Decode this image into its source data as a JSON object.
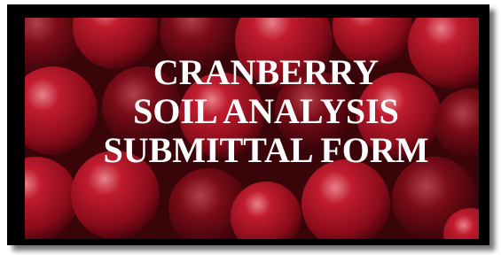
{
  "banner": {
    "title_lines": [
      "CRANBERRY",
      "SOIL ANALYSIS",
      "SUBMITTAL FORM"
    ]
  }
}
